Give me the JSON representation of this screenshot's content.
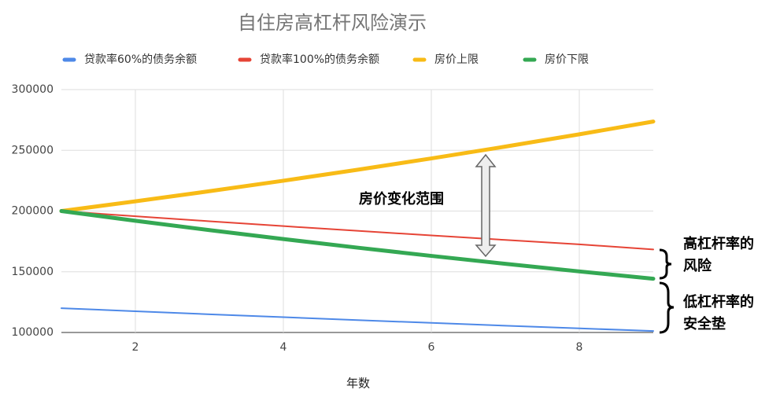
{
  "chart_data": {
    "type": "line",
    "title": "自住房高杠杆风险演示",
    "x_label": "年数",
    "x": [
      1,
      2,
      3,
      4,
      5,
      6,
      7,
      8,
      9
    ],
    "xlim": [
      1,
      9
    ],
    "xticks": [
      2,
      4,
      6,
      8
    ],
    "ylim": [
      100000,
      300000
    ],
    "yticks": [
      100000,
      150000,
      200000,
      250000,
      300000
    ],
    "grid": true,
    "legend": "top",
    "series": [
      {
        "name": "贷款率60%的债务余额",
        "color": "#4e89e8",
        "values": [
          120000,
          117500,
          115000,
          112600,
          110200,
          107900,
          105600,
          103400,
          101200
        ]
      },
      {
        "name": "贷款率100%的债务余额",
        "color": "#e64436",
        "values": [
          200000,
          195700,
          191600,
          187600,
          183700,
          179900,
          176200,
          172600,
          168400
        ]
      },
      {
        "name": "房价上限",
        "color": "#f8bb16",
        "values": [
          200000,
          208000,
          216320,
          224973,
          233972,
          243331,
          253064,
          263186,
          273714
        ]
      },
      {
        "name": "房价下限",
        "color": "#34a853",
        "values": [
          200000,
          192000,
          184320,
          176947,
          169869,
          163074,
          156551,
          150289,
          144277
        ]
      }
    ],
    "annotations": [
      {
        "lines": [
          "房价变化范围"
        ]
      },
      {
        "lines": [
          "高杠杆率的",
          "风险"
        ]
      },
      {
        "lines": [
          "低杠杆率的",
          "安全垫"
        ]
      }
    ]
  }
}
